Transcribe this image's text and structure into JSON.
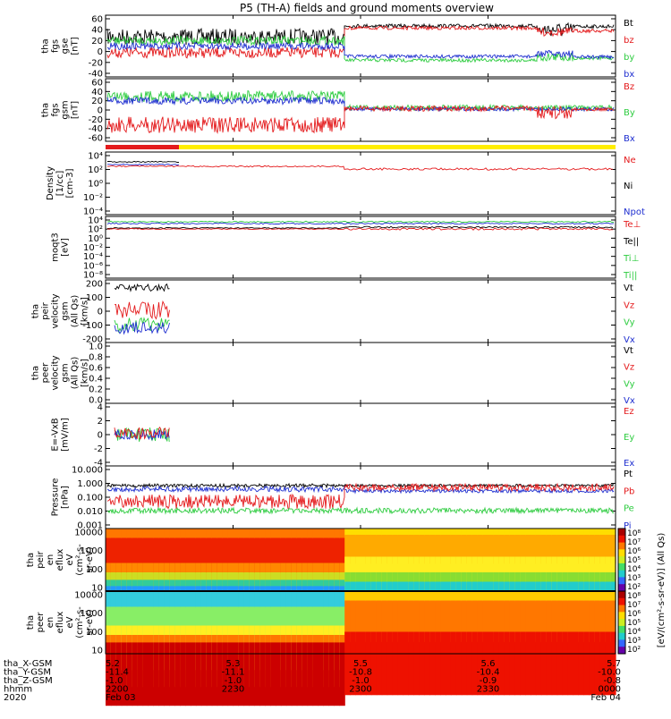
{
  "title": "P5 (TH-A) fields and ground moments overview",
  "colors": {
    "black": "#000000",
    "red": "#e41a1c",
    "green": "#2ecc40",
    "blue": "#1f2fd0",
    "yellow": "#ffee00"
  },
  "panels": [
    {
      "id": "fgs-gse",
      "ylabel": [
        "tha",
        "fgs",
        "gse",
        "[nT]"
      ],
      "yticks": [
        "60",
        "40",
        "20",
        "0",
        "-20",
        "-40"
      ],
      "ylim": [
        -40,
        60
      ],
      "legend": [
        {
          "text": "Bt",
          "color": "black"
        },
        {
          "text": "bz",
          "color": "red"
        },
        {
          "text": "by",
          "color": "green"
        },
        {
          "text": "bx",
          "color": "blue"
        }
      ]
    },
    {
      "id": "fgs-gsm",
      "ylabel": [
        "tha",
        "fgs",
        "gsm",
        "[nT]"
      ],
      "yticks": [
        "60",
        "40",
        "20",
        "0",
        "-20",
        "-40",
        "-60"
      ],
      "ylim": [
        -60,
        60
      ],
      "legend": [
        {
          "text": "Bz",
          "color": "red"
        },
        {
          "text": "By",
          "color": "green"
        },
        {
          "text": "Bx",
          "color": "blue"
        }
      ]
    },
    {
      "id": "density",
      "ylabel": [
        "Density",
        "[1/cc]",
        "[cm-3]"
      ],
      "yticks": [
        "10⁴",
        "10²",
        "10⁰",
        "10⁻²",
        "10⁻⁴"
      ],
      "ylim": [
        "1e-4",
        "1e4"
      ],
      "legend": [
        {
          "text": "Ne",
          "color": "red"
        },
        {
          "text": "Ni",
          "color": "black"
        },
        {
          "text": "Npot",
          "color": "blue"
        }
      ]
    },
    {
      "id": "temp",
      "ylabel": [
        "moqt3",
        "[eV]"
      ],
      "yticks": [
        "10⁴",
        "10²",
        "10⁰",
        "10⁻²",
        "10⁻⁴",
        "10⁻⁶",
        "10⁻⁸"
      ],
      "ylim": [
        "1e-8",
        "1e4"
      ],
      "legend": [
        {
          "text": "Te⊥",
          "color": "red"
        },
        {
          "text": "Te||",
          "color": "black"
        },
        {
          "text": "Ti⊥",
          "color": "green"
        },
        {
          "text": "Ti||",
          "color": "green"
        }
      ]
    },
    {
      "id": "peir-vel",
      "ylabel": [
        "tha",
        "peir",
        "velocity",
        "gsm",
        "(All Qs)",
        "[km/s]"
      ],
      "yticks": [
        "200",
        "100",
        "0",
        "-100",
        "-200"
      ],
      "ylim": [
        -200,
        200
      ],
      "legend": [
        {
          "text": "Vt",
          "color": "black"
        },
        {
          "text": "Vz",
          "color": "red"
        },
        {
          "text": "Vy",
          "color": "green"
        },
        {
          "text": "Vx",
          "color": "blue"
        }
      ]
    },
    {
      "id": "peer-vel",
      "ylabel": [
        "tha",
        "peer",
        "velocity",
        "gsm",
        "(All Qs)",
        "[km/s]"
      ],
      "yticks": [
        "1.0",
        "0.8",
        "0.6",
        "0.4",
        "0.2",
        "0.0"
      ],
      "ylim": [
        0,
        1
      ],
      "legend": [
        {
          "text": "Vt",
          "color": "black"
        },
        {
          "text": "Vz",
          "color": "red"
        },
        {
          "text": "Vy",
          "color": "green"
        },
        {
          "text": "Vx",
          "color": "blue"
        }
      ]
    },
    {
      "id": "efield",
      "ylabel": [
        "E=-VxB",
        "[mV/m]"
      ],
      "yticks": [
        "4",
        "2",
        "0",
        "-2",
        "-4"
      ],
      "ylim": [
        -4,
        4
      ],
      "legend": [
        {
          "text": "Ez",
          "color": "red"
        },
        {
          "text": "Ey",
          "color": "green"
        },
        {
          "text": "Ex",
          "color": "blue"
        }
      ]
    },
    {
      "id": "pressure",
      "ylabel": [
        "Pressure",
        "[nPa]"
      ],
      "yticks": [
        "10.000",
        "1.000",
        "0.100",
        "0.010",
        "0.001"
      ],
      "ylim": [
        0.001,
        10
      ],
      "legend": [
        {
          "text": "Pt",
          "color": "black"
        },
        {
          "text": "Pb",
          "color": "red"
        },
        {
          "text": "Pe",
          "color": "green"
        },
        {
          "text": "Pi",
          "color": "blue"
        }
      ]
    },
    {
      "id": "peir-spec",
      "ylabel": [
        "tha",
        "peir",
        "en",
        "eflux",
        "eV",
        "(cm²-s-",
        "sr-eV)"
      ],
      "yticks": [
        "10000",
        "1000",
        "100",
        "10"
      ],
      "ylim": [
        10,
        20000
      ],
      "legend": []
    },
    {
      "id": "peer-spec",
      "ylabel": [
        "tha",
        "peer",
        "en",
        "eflux",
        "eV",
        "(cm²-s-",
        "sr-eV)"
      ],
      "yticks": [
        "10000",
        "1000",
        "100",
        "10"
      ],
      "ylim": [
        10,
        20000
      ],
      "legend": []
    }
  ],
  "colorbar": {
    "label": "[eV/(cm²-s-sr-eV)] (All Qs)",
    "ticks": [
      "10⁸",
      "10⁷",
      "10⁶",
      "10⁵",
      "10⁴",
      "10³",
      "10²"
    ],
    "ticks2": [
      "10⁸",
      "10⁷",
      "10⁶",
      "10⁵",
      "10⁴",
      "10³",
      "10²"
    ]
  },
  "xaxis": {
    "row_labels": [
      "tha_X-GSM",
      "tha_Y-GSM",
      "tha_Z-GSM",
      "hhmm",
      "2020"
    ],
    "ticks": [
      {
        "x": "5.2",
        "y": "-11.4",
        "z": "-1.0",
        "hhmm": "2200",
        "date": "Feb 03"
      },
      {
        "x": "5.3",
        "y": "-11.1",
        "z": "-1.0",
        "hhmm": "2230",
        "date": ""
      },
      {
        "x": "5.5",
        "y": "-10.8",
        "z": "-1.0",
        "hhmm": "2300",
        "date": ""
      },
      {
        "x": "5.6",
        "y": "-10.4",
        "z": "-0.9",
        "hhmm": "2330",
        "date": ""
      },
      {
        "x": "5.7",
        "y": "-10.0",
        "z": "-0.8",
        "hhmm": "0000",
        "date": "Feb 04"
      }
    ]
  },
  "chart_data": {
    "type": "line",
    "title": "P5 (TH-A) fields and ground moments overview",
    "x": [
      "2200",
      "2230",
      "2300",
      "2330",
      "0000"
    ],
    "xlabel": "hhmm (UT), 2020 Feb 03-04",
    "series": [
      {
        "name": "Bt (GSE)",
        "values": [
          27,
          30,
          47,
          45,
          48
        ]
      },
      {
        "name": "bz (GSE)",
        "values": [
          10,
          5,
          43,
          42,
          38
        ]
      },
      {
        "name": "by (GSE)",
        "values": [
          22,
          25,
          -16,
          -15,
          -12
        ]
      },
      {
        "name": "bx (GSE)",
        "values": [
          -5,
          -10,
          -8,
          -10,
          -10
        ]
      },
      {
        "name": "Bz (GSM)",
        "values": [
          -30,
          -35,
          5,
          5,
          2
        ]
      },
      {
        "name": "By (GSM)",
        "values": [
          30,
          30,
          5,
          5,
          3
        ]
      },
      {
        "name": "Bx (GSM)",
        "values": [
          20,
          20,
          2,
          3,
          3
        ]
      },
      {
        "name": "Ne [cm-3]",
        "values": [
          10,
          10,
          1,
          1,
          1
        ]
      },
      {
        "name": "Pt [nPa]",
        "values": [
          0.8,
          0.9,
          0.9,
          0.9,
          0.9
        ]
      },
      {
        "name": "Pb [nPa]",
        "values": [
          0.2,
          0.4,
          0.9,
          0.8,
          0.8
        ]
      },
      {
        "name": "Pe [nPa]",
        "values": [
          0.02,
          0.02,
          0.02,
          0.02,
          0.02
        ]
      },
      {
        "name": "Pi [nPa]",
        "values": [
          0.7,
          0.4,
          0.08,
          0.1,
          0.1
        ]
      }
    ]
  }
}
